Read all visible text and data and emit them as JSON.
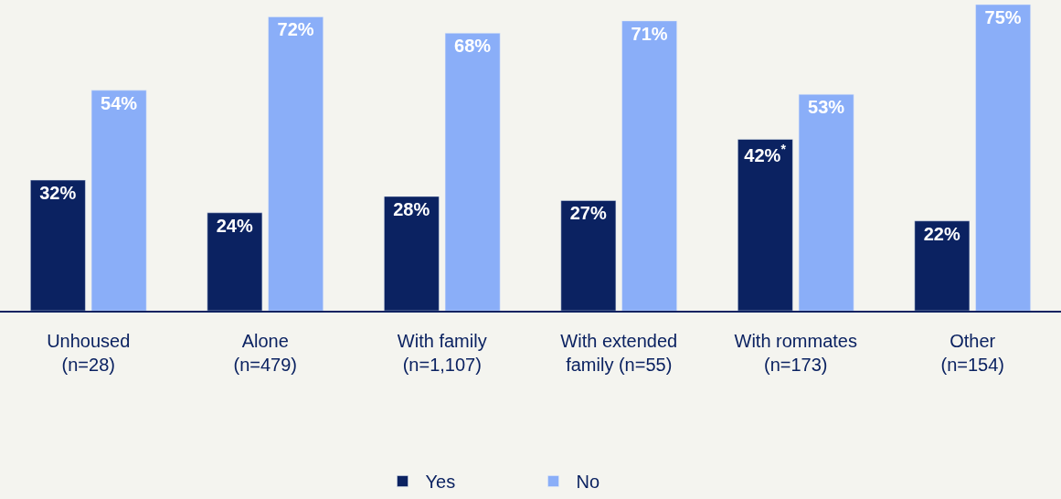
{
  "chart_data": {
    "type": "bar",
    "categories": [
      "Unhoused\n(n=28)",
      "Alone\n(n=479)",
      "With family\n(n=1,107)",
      "With extended\nfamily (n=55)",
      "With rommates\n(n=173)",
      "Other\n(n=154)"
    ],
    "series": [
      {
        "name": "Yes",
        "color": "#0b2261",
        "values": [
          32,
          24,
          28,
          27,
          42,
          22
        ],
        "value_labels": [
          "32%",
          "24%",
          "28%",
          "27%",
          "42%$^{*}$",
          "22%"
        ]
      },
      {
        "name": "No",
        "color": "#8aaef8",
        "values": [
          54,
          72,
          68,
          71,
          53,
          75
        ],
        "value_labels": [
          "54%",
          "72%",
          "68%",
          "71%",
          "53%",
          "75%"
        ]
      }
    ],
    "legend": "bottom",
    "grid": false
  }
}
